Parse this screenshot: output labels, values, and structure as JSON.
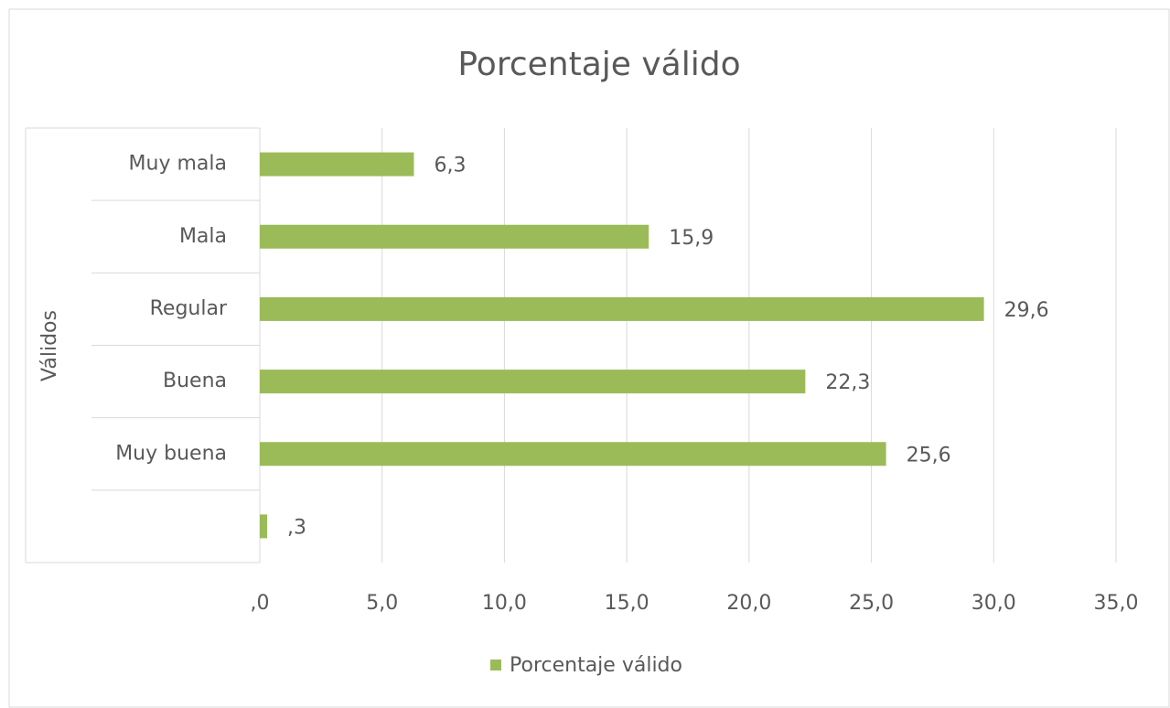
{
  "chart_data": {
    "type": "bar",
    "orientation": "horizontal",
    "title": "Porcentaje válido",
    "group_label": "Válidos",
    "categories": [
      "Muy mala",
      "Mala",
      "Regular",
      "Buena",
      "Muy buena",
      null
    ],
    "series": [
      {
        "name": "Porcentaje válido",
        "color": "#9bbb59",
        "values": [
          6.3,
          15.9,
          29.6,
          22.3,
          25.6,
          0.3
        ],
        "value_labels": [
          "6,3",
          "15,9",
          "29,6",
          "22,3",
          "25,6",
          ",3"
        ]
      }
    ],
    "xlim": [
      0,
      35
    ],
    "xticks": [
      {
        "value": 0,
        "label": ",0"
      },
      {
        "value": 5,
        "label": "5,0"
      },
      {
        "value": 10,
        "label": "10,0"
      },
      {
        "value": 15,
        "label": "15,0"
      },
      {
        "value": 20,
        "label": "20,0"
      },
      {
        "value": 25,
        "label": "25,0"
      },
      {
        "value": 30,
        "label": "30,0"
      },
      {
        "value": 35,
        "label": "35,0"
      }
    ],
    "grid": true,
    "legend": "bottom"
  }
}
